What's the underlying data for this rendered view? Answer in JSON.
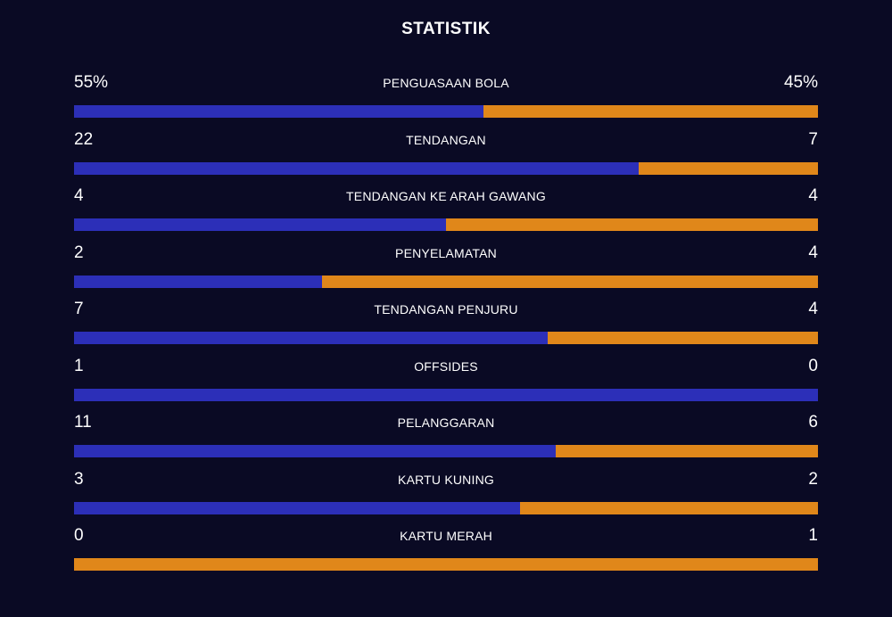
{
  "title": "STATISTIK",
  "colors": {
    "home": "#2c2fb8",
    "away": "#e0871a",
    "background": "#0a0a24"
  },
  "stats": [
    {
      "label": "PENGUASAAN BOLA",
      "home": "55%",
      "away": "45%",
      "home_value": 55,
      "away_value": 45
    },
    {
      "label": "TENDANGAN",
      "home": "22",
      "away": "7",
      "home_value": 22,
      "away_value": 7
    },
    {
      "label": "TENDANGAN KE ARAH GAWANG",
      "home": "4",
      "away": "4",
      "home_value": 4,
      "away_value": 4
    },
    {
      "label": "PENYELAMATAN",
      "home": "2",
      "away": "4",
      "home_value": 2,
      "away_value": 4
    },
    {
      "label": "TENDANGAN PENJURU",
      "home": "7",
      "away": "4",
      "home_value": 7,
      "away_value": 4
    },
    {
      "label": "OFFSIDES",
      "home": "1",
      "away": "0",
      "home_value": 1,
      "away_value": 0
    },
    {
      "label": "PELANGGARAN",
      "home": "11",
      "away": "6",
      "home_value": 11,
      "away_value": 6
    },
    {
      "label": "KARTU KUNING",
      "home": "3",
      "away": "2",
      "home_value": 3,
      "away_value": 2
    },
    {
      "label": "KARTU MERAH",
      "home": "0",
      "away": "1",
      "home_value": 0,
      "away_value": 1
    }
  ]
}
